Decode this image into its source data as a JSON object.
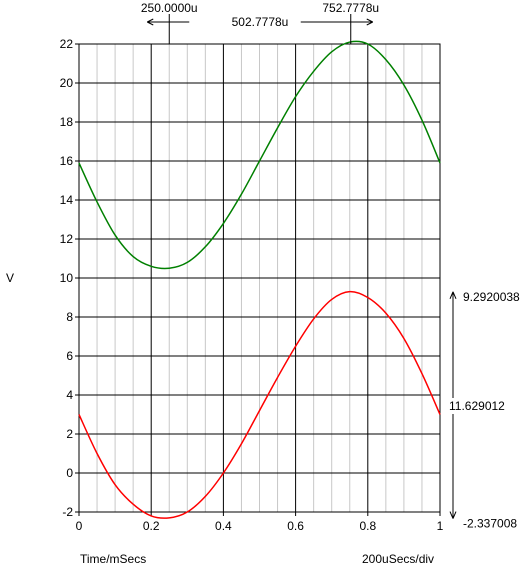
{
  "chart_data": {
    "type": "line",
    "ylabel": "V",
    "xlabel": "Time/mSecs",
    "scale_note": "200uSecs/div",
    "xlim": [
      0,
      1
    ],
    "ylim": [
      -2,
      22
    ],
    "x_ticks": [
      "0",
      "0.2",
      "0.4",
      "0.6",
      "0.8",
      "1"
    ],
    "y_ticks": [
      "-2",
      "0",
      "2",
      "4",
      "6",
      "8",
      "10",
      "12",
      "14",
      "16",
      "18",
      "20",
      "22"
    ],
    "grid": true,
    "series": [
      {
        "color": "#008000",
        "x": [
          0,
          0.05,
          0.1,
          0.15,
          0.2,
          0.25,
          0.3,
          0.35,
          0.4,
          0.45,
          0.5,
          0.55,
          0.6,
          0.65,
          0.7,
          0.75,
          0.8,
          0.85,
          0.9,
          0.95,
          1.0
        ],
        "values": [
          15.9,
          13.9,
          12.2,
          11.1,
          10.6,
          10.5,
          10.8,
          11.6,
          12.8,
          14.3,
          16.0,
          17.7,
          19.3,
          20.6,
          21.6,
          22.1,
          22.0,
          21.2,
          19.9,
          18.1,
          15.9
        ]
      },
      {
        "color": "#ff0000",
        "x": [
          0,
          0.05,
          0.1,
          0.15,
          0.2,
          0.25,
          0.3,
          0.35,
          0.4,
          0.45,
          0.5,
          0.55,
          0.6,
          0.65,
          0.7,
          0.75,
          0.8,
          0.85,
          0.9,
          0.95,
          1.0
        ],
        "values": [
          3.0,
          1.0,
          -0.6,
          -1.6,
          -2.2,
          -2.3,
          -2.0,
          -1.2,
          0.0,
          1.5,
          3.2,
          4.9,
          6.5,
          7.9,
          8.9,
          9.3,
          9.0,
          8.2,
          6.9,
          5.1,
          3.0
        ]
      }
    ],
    "cursors": {
      "x1": 0.25,
      "x2": 0.7527778,
      "x1_label": "250.0000u",
      "x2_label": "752.7778u",
      "dx_label": "502.7778u"
    },
    "y_measure": {
      "top_value": 9.2920038,
      "bottom_value": -2.337008,
      "top_label": "9.2920038",
      "bottom_label": "-2.337008",
      "delta_label": "11.629012"
    }
  }
}
